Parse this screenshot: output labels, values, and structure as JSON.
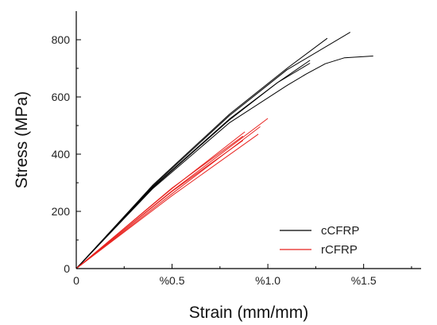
{
  "chart_data": {
    "type": "line",
    "title": "",
    "xlabel": "Strain (mm/mm)",
    "ylabel": "Stress (MPa)",
    "xlim": [
      0,
      0.018
    ],
    "ylim": [
      0,
      900
    ],
    "x_ticks": [
      {
        "value": 0,
        "label": "0"
      },
      {
        "value": 0.005,
        "label": "%0.5"
      },
      {
        "value": 0.01,
        "label": "%1.0"
      },
      {
        "value": 0.015,
        "label": "%1.5"
      }
    ],
    "y_ticks": [
      {
        "value": 0,
        "label": "0"
      },
      {
        "value": 200,
        "label": "200"
      },
      {
        "value": 400,
        "label": "400"
      },
      {
        "value": 600,
        "label": "600"
      },
      {
        "value": 800,
        "label": "800"
      }
    ],
    "grid": false,
    "legend": {
      "position": "bottom-right",
      "entries": [
        {
          "label": "cCFRP",
          "color": "#000000"
        },
        {
          "label": "rCFRP",
          "color": "#e8231f"
        }
      ]
    },
    "series": [
      {
        "group": "cCFRP",
        "color": "#000000",
        "points": [
          [
            0,
            0
          ],
          [
            0.004,
            292
          ],
          [
            0.008,
            540
          ],
          [
            0.011,
            700
          ],
          [
            0.0131,
            805
          ]
        ]
      },
      {
        "group": "cCFRP",
        "color": "#000000",
        "points": [
          [
            0,
            0
          ],
          [
            0.004,
            288
          ],
          [
            0.008,
            535
          ],
          [
            0.011,
            695
          ],
          [
            0.0143,
            826
          ]
        ]
      },
      {
        "group": "cCFRP",
        "color": "#000000",
        "points": [
          [
            0,
            0
          ],
          [
            0.004,
            283
          ],
          [
            0.008,
            520
          ],
          [
            0.0105,
            650
          ],
          [
            0.0122,
            728
          ]
        ]
      },
      {
        "group": "cCFRP",
        "color": "#000000",
        "points": [
          [
            0,
            0
          ],
          [
            0.004,
            285
          ],
          [
            0.008,
            523
          ],
          [
            0.0105,
            650
          ],
          [
            0.0122,
            718
          ]
        ]
      },
      {
        "group": "cCFRP",
        "color": "#000000",
        "points": [
          [
            0,
            0
          ],
          [
            0.004,
            280
          ],
          [
            0.008,
            510
          ],
          [
            0.011,
            640
          ],
          [
            0.012,
            680
          ],
          [
            0.013,
            716
          ],
          [
            0.014,
            737
          ],
          [
            0.0155,
            743
          ]
        ]
      },
      {
        "group": "rCFRP",
        "color": "#e8231f",
        "points": [
          [
            0,
            0
          ],
          [
            0.005,
            282
          ],
          [
            0.0087,
            463
          ]
        ]
      },
      {
        "group": "rCFRP",
        "color": "#e8231f",
        "points": [
          [
            0,
            0
          ],
          [
            0.005,
            270
          ],
          [
            0.0087,
            448
          ]
        ]
      },
      {
        "group": "rCFRP",
        "color": "#e8231f",
        "points": [
          [
            0,
            0
          ],
          [
            0.005,
            255
          ],
          [
            0.0095,
            470
          ]
        ]
      },
      {
        "group": "rCFRP",
        "color": "#e8231f",
        "points": [
          [
            0,
            0
          ],
          [
            0.005,
            262
          ],
          [
            0.0096,
            496
          ]
        ]
      },
      {
        "group": "rCFRP",
        "color": "#e8231f",
        "points": [
          [
            0,
            0
          ],
          [
            0.005,
            272
          ],
          [
            0.01,
            525
          ]
        ]
      },
      {
        "group": "rCFRP",
        "color": "#e8231f",
        "points": [
          [
            0,
            0
          ],
          [
            0.005,
            280
          ],
          [
            0.0088,
            478
          ]
        ]
      }
    ]
  }
}
